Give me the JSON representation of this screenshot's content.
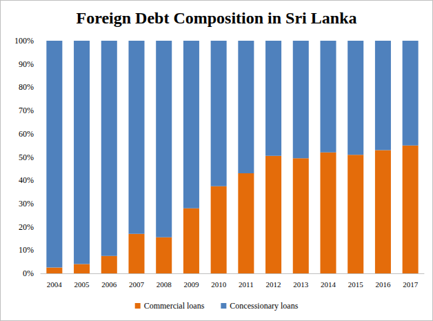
{
  "chart_data": {
    "type": "bar",
    "title": "Foreign Debt Composition in Sri Lanka",
    "categories": [
      "2004",
      "2005",
      "2006",
      "2007",
      "2008",
      "2009",
      "2010",
      "2011",
      "2012",
      "2013",
      "2014",
      "2015",
      "2016",
      "2017"
    ],
    "series": [
      {
        "name": "Commercial loans",
        "color": "#e46c0a",
        "values": [
          2.5,
          4,
          7.5,
          17,
          15.5,
          28,
          37.5,
          43,
          50.5,
          49.5,
          52,
          51,
          53,
          55
        ]
      },
      {
        "name": "Concessionary loans",
        "color": "#4f81bd",
        "values": [
          97.5,
          96,
          92.5,
          83,
          84.5,
          72,
          62.5,
          57,
          49.5,
          50.5,
          48,
          49,
          47,
          45
        ]
      }
    ],
    "ylim": [
      0,
      100
    ],
    "yticks": [
      {
        "value": 0,
        "label": "0%"
      },
      {
        "value": 10,
        "label": "10%"
      },
      {
        "value": 20,
        "label": "20%"
      },
      {
        "value": 30,
        "label": "30%"
      },
      {
        "value": 40,
        "label": "40%"
      },
      {
        "value": 50,
        "label": "50%"
      },
      {
        "value": 60,
        "label": "60%"
      },
      {
        "value": 70,
        "label": "70%"
      },
      {
        "value": 80,
        "label": "80%"
      },
      {
        "value": 90,
        "label": "90%"
      },
      {
        "value": 100,
        "label": "100%"
      }
    ],
    "stacked": true,
    "grid": false,
    "legend": "bottom"
  }
}
